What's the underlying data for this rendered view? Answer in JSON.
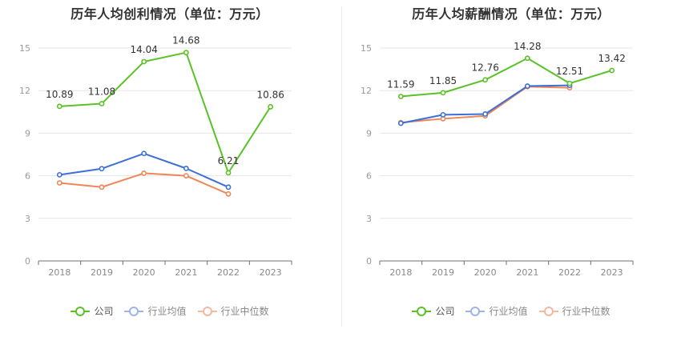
{
  "chart_data": [
    {
      "type": "line",
      "title": "历年人均创利情况（单位：万元）",
      "categories": [
        "2018",
        "2019",
        "2020",
        "2021",
        "2022",
        "2023"
      ],
      "ylim": [
        0,
        15
      ],
      "yticks": [
        0,
        3,
        6,
        9,
        12,
        15
      ],
      "grid": true,
      "legend_position": "bottom-center",
      "series": [
        {
          "name": "公司",
          "color": "#5ac226",
          "values": [
            10.89,
            11.08,
            14.04,
            14.68,
            6.21,
            10.86
          ],
          "labels": [
            "10.89",
            "11.08",
            "14.04",
            "14.68",
            "6.21",
            "10.86"
          ]
        },
        {
          "name": "行业均值",
          "color": "#3d6fd8",
          "values": [
            6.07,
            6.5,
            7.57,
            6.52,
            5.2,
            null
          ]
        },
        {
          "name": "行业中位数",
          "color": "#ee8656",
          "values": [
            5.5,
            5.2,
            6.18,
            6.0,
            4.72,
            null
          ]
        }
      ]
    },
    {
      "type": "line",
      "title": "历年人均薪酬情况（单位：万元）",
      "categories": [
        "2018",
        "2019",
        "2020",
        "2021",
        "2022",
        "2023"
      ],
      "ylim": [
        0,
        15
      ],
      "yticks": [
        0,
        3,
        6,
        9,
        12,
        15
      ],
      "grid": true,
      "legend_position": "bottom-center",
      "series": [
        {
          "name": "公司",
          "color": "#5ac226",
          "values": [
            11.59,
            11.85,
            12.76,
            14.28,
            12.51,
            13.42
          ],
          "labels": [
            "11.59",
            "11.85",
            "12.76",
            "14.28",
            "12.51",
            "13.42"
          ]
        },
        {
          "name": "行业均值",
          "color": "#3d6fd8",
          "values": [
            9.7,
            10.3,
            10.35,
            12.32,
            12.37,
            null
          ]
        },
        {
          "name": "行业中位数",
          "color": "#ee8656",
          "values": [
            9.75,
            10.02,
            10.22,
            12.28,
            12.2,
            null
          ]
        }
      ]
    }
  ]
}
